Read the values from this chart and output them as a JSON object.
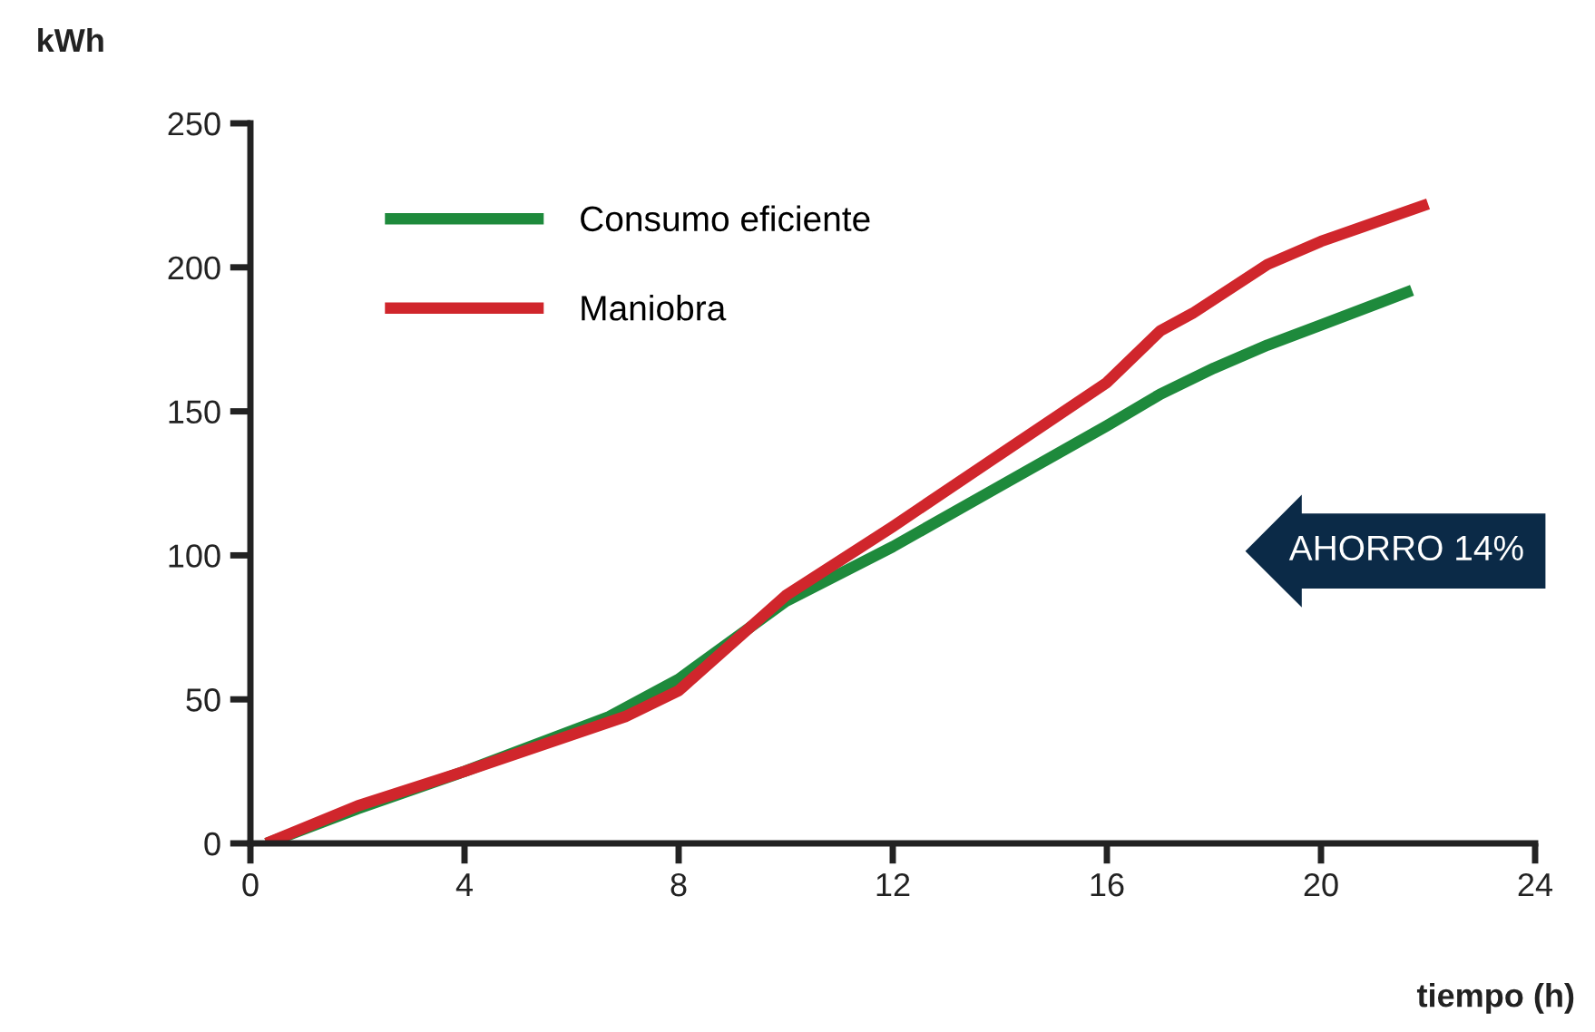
{
  "chart_data": {
    "type": "line",
    "xlabel": "tiempo (h)",
    "ylabel": "kWh",
    "xlim": [
      0,
      24
    ],
    "ylim": [
      0,
      250
    ],
    "xticks": [
      0,
      4,
      8,
      12,
      16,
      20,
      24
    ],
    "yticks": [
      0,
      50,
      100,
      150,
      200,
      250
    ],
    "grid": false,
    "legend": "top left",
    "marker": "none",
    "line_style": "solid",
    "annotations": [
      "AHORRO 14%"
    ],
    "series": [
      {
        "name": "Consumo eficiente",
        "color": "#1e8a3c",
        "x": [
          0.3,
          2,
          4,
          6.7,
          8,
          10,
          12,
          14,
          16,
          17,
          18,
          19,
          20,
          21.7
        ],
        "values": [
          0,
          12,
          25,
          44,
          57,
          84,
          103,
          124,
          145,
          156,
          165,
          173,
          180,
          192
        ]
      },
      {
        "name": "Maniobra",
        "color": "#d0262c",
        "x": [
          0.3,
          2,
          4,
          7,
          8,
          10,
          12,
          14,
          16,
          17,
          17.6,
          19,
          20,
          22
        ],
        "values": [
          0,
          13,
          25,
          44,
          53,
          86,
          110,
          135,
          160,
          178,
          184,
          201,
          209,
          222
        ]
      }
    ]
  }
}
